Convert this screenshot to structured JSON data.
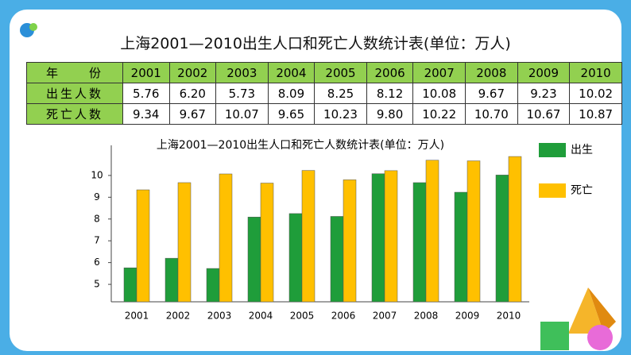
{
  "title": "上海2001—2010出生人口和死亡人数统计表(单位：万人)",
  "table": {
    "rows": [
      [
        "年　　份",
        "2001",
        "2002",
        "2003",
        "2004",
        "2005",
        "2006",
        "2007",
        "2008",
        "2009",
        "2010"
      ],
      [
        "出生人数",
        "5.76",
        "6.20",
        "5.73",
        "8.09",
        "8.25",
        "8.12",
        "10.08",
        "9.67",
        "9.23",
        "10.02"
      ],
      [
        "死亡人数",
        "9.34",
        "9.67",
        "10.07",
        "9.65",
        "10.23",
        "9.80",
        "10.22",
        "10.70",
        "10.67",
        "10.87"
      ]
    ]
  },
  "chart_data": {
    "type": "bar",
    "title": "上海2001—2010出生人口和死亡人数统计表(单位：万人)",
    "categories": [
      "2001",
      "2002",
      "2003",
      "2004",
      "2005",
      "2006",
      "2007",
      "2008",
      "2009",
      "2010"
    ],
    "series": [
      {
        "name": "出生",
        "color": "#1f9d3a",
        "values": [
          5.76,
          6.2,
          5.73,
          8.09,
          8.25,
          8.12,
          10.08,
          9.67,
          9.23,
          10.02
        ]
      },
      {
        "name": "死亡",
        "color": "#ffc000",
        "values": [
          9.34,
          9.67,
          10.07,
          9.65,
          10.23,
          9.8,
          10.22,
          10.7,
          10.67,
          10.87
        ]
      }
    ],
    "ylim": [
      4.2,
      11.2
    ],
    "yticks": [
      5,
      6,
      7,
      8,
      9,
      10
    ]
  }
}
